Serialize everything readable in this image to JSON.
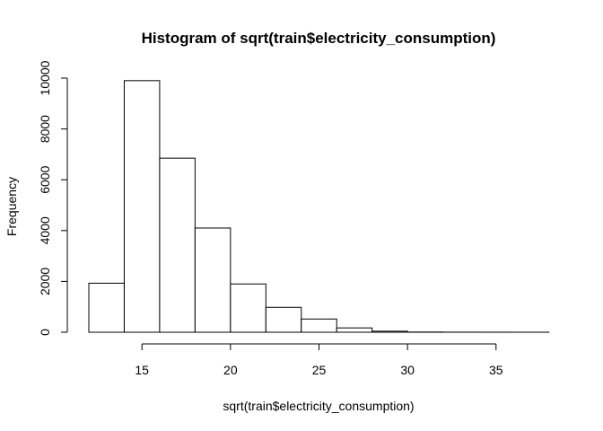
{
  "chart_data": {
    "type": "bar",
    "title": "Histogram of sqrt(train$electricity_consumption)",
    "xlabel": "sqrt(train$electricity_consumption)",
    "ylabel": "Frequency",
    "bins": [
      {
        "x0": 12,
        "x1": 14,
        "count": 1930
      },
      {
        "x0": 14,
        "x1": 16,
        "count": 9900
      },
      {
        "x0": 16,
        "x1": 18,
        "count": 6850
      },
      {
        "x0": 18,
        "x1": 20,
        "count": 4100
      },
      {
        "x0": 20,
        "x1": 22,
        "count": 1900
      },
      {
        "x0": 22,
        "x1": 24,
        "count": 980
      },
      {
        "x0": 24,
        "x1": 26,
        "count": 520
      },
      {
        "x0": 26,
        "x1": 28,
        "count": 170
      },
      {
        "x0": 28,
        "x1": 30,
        "count": 40
      },
      {
        "x0": 30,
        "x1": 32,
        "count": 8
      },
      {
        "x0": 32,
        "x1": 34,
        "count": 3
      },
      {
        "x0": 34,
        "x1": 36,
        "count": 2
      },
      {
        "x0": 36,
        "x1": 38,
        "count": 1
      }
    ],
    "xticks": [
      15,
      20,
      25,
      30,
      35
    ],
    "xtick_labels": [
      "15",
      "20",
      "25",
      "30",
      "35"
    ],
    "yticks": [
      0,
      2000,
      4000,
      6000,
      8000,
      10000
    ],
    "ytick_labels": [
      "0",
      "2000",
      "4000",
      "6000",
      "8000",
      "10000"
    ],
    "xlim": [
      12,
      38
    ],
    "ylim": [
      0,
      10000
    ],
    "grid": false,
    "legend": "none"
  }
}
